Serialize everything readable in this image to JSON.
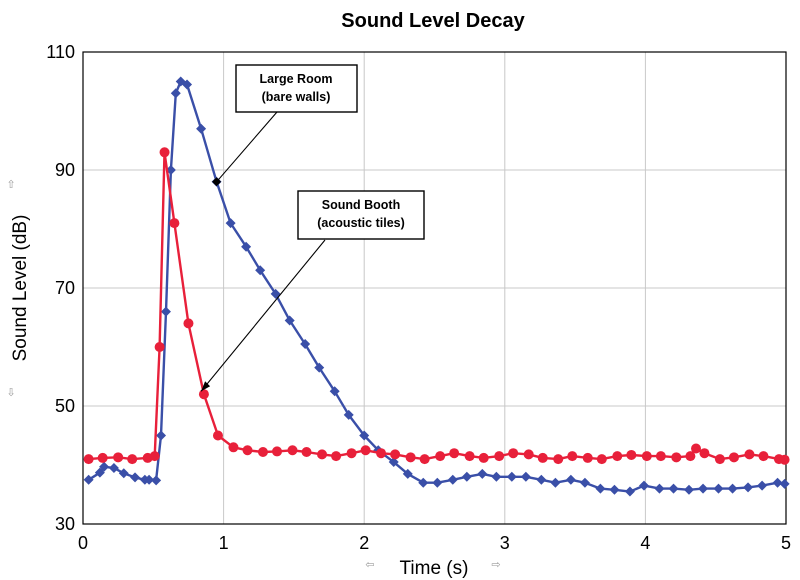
{
  "chart_data": {
    "type": "line",
    "title": "Sound Level Decay",
    "xlabel": "Time (s)",
    "ylabel": "Sound Level (dB)",
    "xlim": [
      0,
      5
    ],
    "ylim": [
      30,
      110
    ],
    "x_ticks": [
      "0",
      "1",
      "2",
      "3",
      "4",
      "5"
    ],
    "y_ticks": [
      "30",
      "50",
      "70",
      "90",
      "110"
    ],
    "grid": true,
    "series": [
      {
        "id": "large-room",
        "color": "#3a4fa8",
        "marker": "diamond",
        "x": [
          0.04,
          0.12,
          0.15,
          0.22,
          0.29,
          0.37,
          0.44,
          0.47,
          0.52,
          0.555,
          0.59,
          0.625,
          0.66,
          0.695,
          0.74,
          0.84,
          0.95,
          1.05,
          1.16,
          1.26,
          1.37,
          1.47,
          1.58,
          1.68,
          1.79,
          1.89,
          2.0,
          2.1,
          2.21,
          2.31,
          2.42,
          2.52,
          2.63,
          2.73,
          2.84,
          2.94,
          3.05,
          3.15,
          3.26,
          3.36,
          3.47,
          3.57,
          3.68,
          3.78,
          3.89,
          3.99,
          4.1,
          4.2,
          4.31,
          4.41,
          4.52,
          4.62,
          4.73,
          4.83,
          4.94,
          4.99
        ],
        "values": [
          37.5,
          38.7,
          39.7,
          39.5,
          38.6,
          37.9,
          37.5,
          37.5,
          37.4,
          45.0,
          66.0,
          90.0,
          103.0,
          105.0,
          104.5,
          97.0,
          88.0,
          81.0,
          77.0,
          73.0,
          69.0,
          64.5,
          60.5,
          56.5,
          52.5,
          48.5,
          45.0,
          42.5,
          40.5,
          38.5,
          37.0,
          37.0,
          37.5,
          38.0,
          38.5,
          38.0,
          38.0,
          38.0,
          37.5,
          37.0,
          37.5,
          37.0,
          36.0,
          35.8,
          35.5,
          36.5,
          36.0,
          36.0,
          35.8,
          36.0,
          36.0,
          36.0,
          36.2,
          36.5,
          37.0,
          36.8
        ]
      },
      {
        "id": "sound-booth",
        "color": "#e8203a",
        "marker": "circle",
        "x": [
          0.04,
          0.14,
          0.25,
          0.35,
          0.46,
          0.51,
          0.545,
          0.58,
          0.65,
          0.75,
          0.86,
          0.96,
          1.07,
          1.17,
          1.28,
          1.38,
          1.49,
          1.59,
          1.7,
          1.8,
          1.91,
          2.01,
          2.12,
          2.22,
          2.33,
          2.43,
          2.54,
          2.64,
          2.75,
          2.85,
          2.96,
          3.06,
          3.17,
          3.27,
          3.38,
          3.48,
          3.59,
          3.69,
          3.8,
          3.9,
          4.01,
          4.11,
          4.22,
          4.32,
          4.36,
          4.42,
          4.53,
          4.63,
          4.74,
          4.84,
          4.95,
          4.99
        ],
        "values": [
          41.0,
          41.2,
          41.3,
          41.0,
          41.2,
          41.5,
          60.0,
          93.0,
          81.0,
          64.0,
          52.0,
          45.0,
          43.0,
          42.5,
          42.2,
          42.3,
          42.5,
          42.2,
          41.8,
          41.5,
          42.0,
          42.5,
          42.0,
          41.8,
          41.3,
          41.0,
          41.5,
          42.0,
          41.5,
          41.2,
          41.5,
          42.0,
          41.8,
          41.2,
          41.0,
          41.5,
          41.2,
          41.0,
          41.5,
          41.7,
          41.5,
          41.5,
          41.3,
          41.5,
          42.8,
          42.0,
          41.0,
          41.3,
          41.8,
          41.5,
          41.0,
          40.9
        ]
      }
    ],
    "annotations": [
      {
        "lines": [
          "Large Room",
          "(bare walls)"
        ],
        "target_x": 0.95,
        "target_y": 88,
        "series": "large-room"
      },
      {
        "lines": [
          "Sound Booth",
          "(acoustic tiles)"
        ],
        "target_x": 0.84,
        "target_y": 52.5,
        "series": "sound-booth"
      }
    ]
  },
  "scroll_arrows": {
    "left": "⇦",
    "right": "⇨",
    "up": "⇧",
    "down": "⇩"
  }
}
